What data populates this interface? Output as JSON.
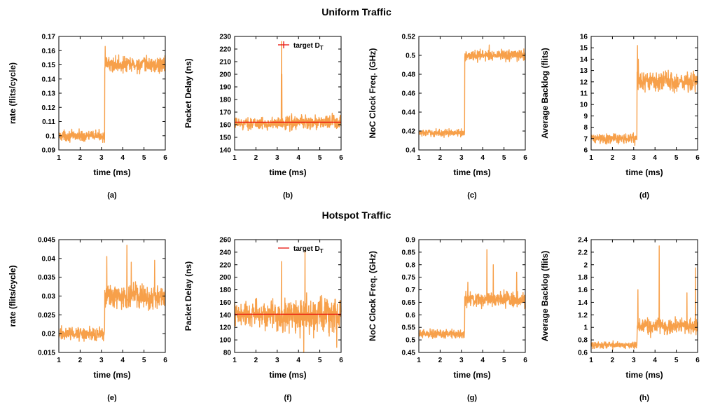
{
  "sections": [
    {
      "title": "Uniform Traffic"
    },
    {
      "title": "Hotspot Traffic"
    }
  ],
  "colors": {
    "series": "#f7a04a",
    "target": "#e8140c"
  },
  "chart_data": [
    {
      "type": "line",
      "panel": "(a)",
      "xlabel": "time (ms)",
      "ylabel": "rate (flits/cycle)",
      "xlim": [
        1,
        6
      ],
      "ylim": [
        0.09,
        0.17
      ],
      "xticks": [
        "1",
        "2",
        "3",
        "4",
        "5",
        "6"
      ],
      "yticks": [
        "0.09",
        "0.1",
        "0.11",
        "0.12",
        "0.13",
        "0.14",
        "0.15",
        "0.16",
        "0.17"
      ],
      "series": [
        {
          "x_range": [
            1,
            6
          ],
          "step_at": 3.15,
          "before": 0.1,
          "after": 0.15,
          "noise_before": 0.0025,
          "noise_after": 0.004,
          "spikes": [
            [
              3.18,
              0.163
            ]
          ]
        }
      ]
    },
    {
      "type": "line",
      "panel": "(b)",
      "xlabel": "time (ms)",
      "ylabel": "Packet Delay (ns)",
      "xlim": [
        1,
        6
      ],
      "ylim": [
        140,
        230
      ],
      "xticks": [
        "1",
        "2",
        "3",
        "4",
        "5",
        "6"
      ],
      "yticks": [
        "140",
        "150",
        "160",
        "170",
        "180",
        "190",
        "200",
        "210",
        "220",
        "230"
      ],
      "legend": "target D_T",
      "target": 162,
      "series": [
        {
          "x_range": [
            1,
            6
          ],
          "step_at": 3.15,
          "before": 161,
          "after": 162,
          "noise_before": 3,
          "noise_after": 4,
          "spikes": [
            [
              3.2,
              226
            ],
            [
              3.22,
              200
            ]
          ]
        }
      ]
    },
    {
      "type": "line",
      "panel": "(c)",
      "xlabel": "time (ms)",
      "ylabel": "NoC Clock Freq. (GHz)",
      "xlim": [
        1,
        6
      ],
      "ylim": [
        0.4,
        0.52
      ],
      "xticks": [
        "1",
        "2",
        "3",
        "4",
        "5",
        "6"
      ],
      "yticks": [
        "0.4",
        "0.42",
        "0.44",
        "0.46",
        "0.48",
        "0.5",
        "0.52"
      ],
      "series": [
        {
          "x_range": [
            1,
            6
          ],
          "step_at": 3.15,
          "before": 0.418,
          "after": 0.5,
          "noise_before": 0.0025,
          "noise_after": 0.004,
          "spikes": [
            [
              4.3,
              0.511
            ]
          ]
        }
      ]
    },
    {
      "type": "line",
      "panel": "(d)",
      "xlabel": "time (ms)",
      "ylabel": "Average Backlog (flits)",
      "xlim": [
        1,
        6
      ],
      "ylim": [
        6,
        16
      ],
      "xticks": [
        "1",
        "2",
        "3",
        "4",
        "5",
        "6"
      ],
      "yticks": [
        "6",
        "7",
        "8",
        "9",
        "10",
        "11",
        "12",
        "13",
        "14",
        "15",
        "16"
      ],
      "series": [
        {
          "x_range": [
            1,
            6
          ],
          "step_at": 3.15,
          "before": 7,
          "after": 12,
          "noise_before": 0.3,
          "noise_after": 0.6,
          "spikes": [
            [
              3.18,
              15.2
            ],
            [
              3.22,
              14
            ]
          ]
        }
      ]
    },
    {
      "type": "line",
      "panel": "(e)",
      "xlabel": "time (ms)",
      "ylabel": "rate (flits/cycle)",
      "xlim": [
        1,
        6
      ],
      "ylim": [
        0.015,
        0.045
      ],
      "xticks": [
        "1",
        "2",
        "3",
        "4",
        "5",
        "6"
      ],
      "yticks": [
        "0.015",
        "0.02",
        "0.025",
        "0.03",
        "0.035",
        "0.04",
        "0.045"
      ],
      "series": [
        {
          "x_range": [
            1,
            6
          ],
          "step_at": 3.15,
          "before": 0.02,
          "after": 0.03,
          "noise_before": 0.0012,
          "noise_after": 0.0022,
          "spikes": [
            [
              3.25,
              0.0405
            ],
            [
              4.2,
              0.0435
            ],
            [
              4.4,
              0.039
            ],
            [
              5.5,
              0.0395
            ]
          ]
        }
      ]
    },
    {
      "type": "line",
      "panel": "(f)",
      "xlabel": "time (ms)",
      "ylabel": "Packet Delay (ns)",
      "xlim": [
        1,
        6
      ],
      "ylim": [
        80,
        260
      ],
      "xticks": [
        "1",
        "2",
        "3",
        "4",
        "5",
        "6"
      ],
      "yticks": [
        "80",
        "100",
        "120",
        "140",
        "160",
        "180",
        "200",
        "220",
        "240",
        "260"
      ],
      "legend": "target D_T",
      "target": 141,
      "series": [
        {
          "x_range": [
            1,
            6
          ],
          "step_at": 3.15,
          "before": 140,
          "after": 140,
          "noise_before": 15,
          "noise_after": 20,
          "spikes": [
            [
              3.2,
              225
            ],
            [
              4.3,
              242
            ],
            [
              4.25,
              80
            ],
            [
              5.8,
              88
            ]
          ]
        }
      ]
    },
    {
      "type": "line",
      "panel": "(g)",
      "xlabel": "time (ms)",
      "ylabel": "NoC Clock Freq. (GHz)",
      "xlim": [
        1,
        6
      ],
      "ylim": [
        0.45,
        0.9
      ],
      "xticks": [
        "1",
        "2",
        "3",
        "4",
        "5",
        "6"
      ],
      "yticks": [
        "0.45",
        "0.5",
        "0.55",
        "0.6",
        "0.65",
        "0.7",
        "0.75",
        "0.8",
        "0.85",
        "0.9"
      ],
      "series": [
        {
          "x_range": [
            1,
            6
          ],
          "step_at": 3.15,
          "before": 0.525,
          "after": 0.66,
          "noise_before": 0.012,
          "noise_after": 0.02,
          "spikes": [
            [
              4.2,
              0.86
            ],
            [
              4.5,
              0.8
            ],
            [
              5.6,
              0.77
            ],
            [
              3.3,
              0.73
            ]
          ]
        }
      ]
    },
    {
      "type": "line",
      "panel": "(h)",
      "xlabel": "time (ms)",
      "ylabel": "Average Backlog (flits)",
      "xlim": [
        1,
        6
      ],
      "ylim": [
        0.6,
        2.4
      ],
      "xticks": [
        "1",
        "2",
        "3",
        "4",
        "5",
        "6"
      ],
      "yticks": [
        "0.6",
        "0.8",
        "1",
        "1.2",
        "1.4",
        "1.6",
        "1.8",
        "2",
        "2.2",
        "2.4"
      ],
      "series": [
        {
          "x_range": [
            1,
            6
          ],
          "step_at": 3.15,
          "before": 0.72,
          "after": 1.02,
          "noise_before": 0.04,
          "noise_after": 0.09,
          "spikes": [
            [
              4.2,
              2.3
            ],
            [
              5.9,
              1.95
            ],
            [
              3.2,
              1.6
            ],
            [
              5.5,
              1.55
            ]
          ]
        }
      ]
    }
  ]
}
